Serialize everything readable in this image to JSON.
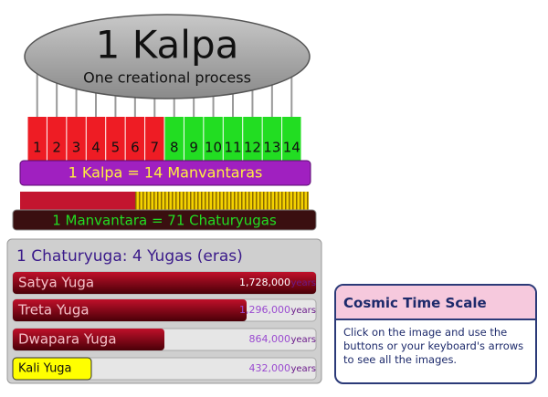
{
  "kalpa": {
    "title": "1 Kalpa",
    "subtitle": "One creational process",
    "manvantara_numbers": [
      1,
      2,
      3,
      4,
      5,
      6,
      7,
      8,
      9,
      10,
      11,
      12,
      13,
      14
    ],
    "equation": "1 Kalpa = 14 Manvantaras"
  },
  "manvantara": {
    "equation": "1 Manvantara = 71 Chaturyugas"
  },
  "chaturyuga": {
    "title": "1 Chaturyuga: 4 Yugas (eras)",
    "rows": [
      {
        "name": "Satya Yuga",
        "years": "1,728,000",
        "unit": "years"
      },
      {
        "name": "Treta Yuga",
        "years": "1,296,000",
        "unit": "years"
      },
      {
        "name": "Dwapara Yuga",
        "years": "864,000",
        "unit": "years"
      },
      {
        "name": "Kali Yuga",
        "years": "432,000",
        "unit": "years"
      }
    ]
  },
  "info_panel": {
    "title": "Cosmic Time Scale",
    "text": "Click on the image and use the buttons or your keyboard's arrows to see all the images."
  }
}
